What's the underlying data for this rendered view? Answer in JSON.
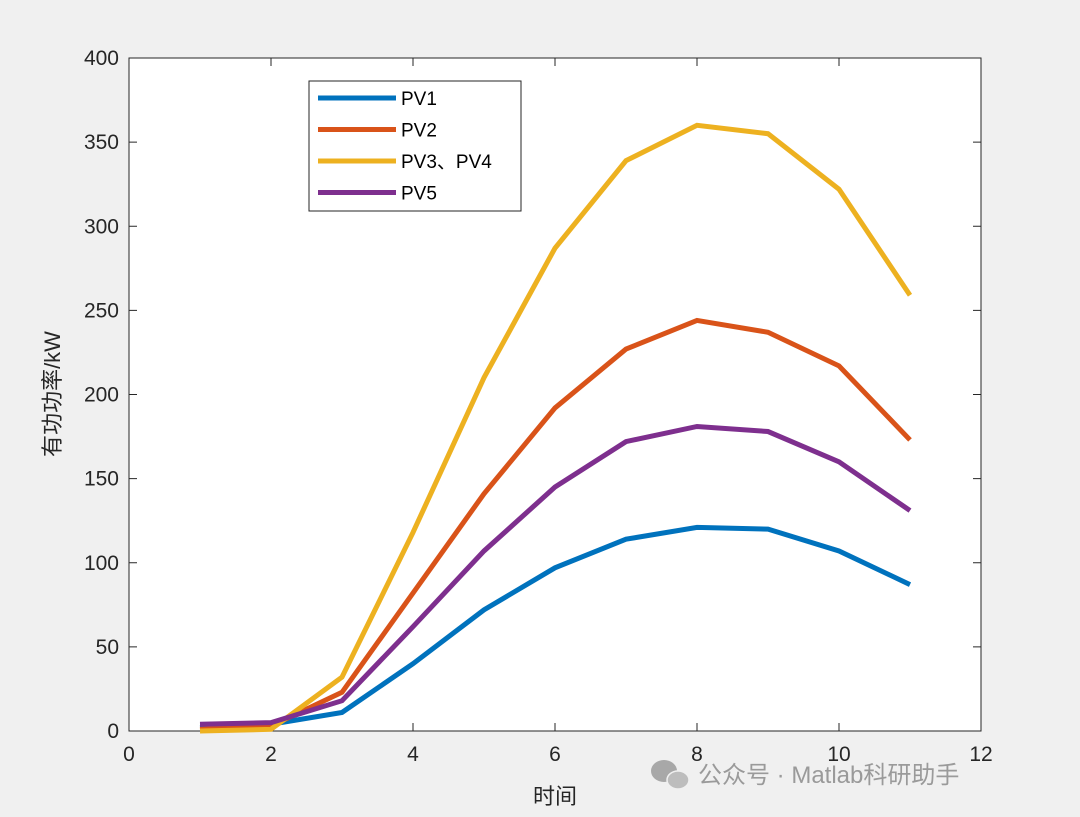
{
  "chart_data": {
    "type": "line",
    "title": "",
    "xlabel": "时间",
    "ylabel": "有功功率/kW",
    "xlim": [
      0,
      12
    ],
    "ylim": [
      0,
      400
    ],
    "xticks": [
      0,
      2,
      4,
      6,
      8,
      10,
      12
    ],
    "yticks": [
      0,
      50,
      100,
      150,
      200,
      250,
      300,
      350,
      400
    ],
    "grid": false,
    "legend_position": "top-left",
    "x": [
      1,
      2,
      3,
      4,
      5,
      6,
      7,
      8,
      9,
      10,
      11
    ],
    "series": [
      {
        "name": "PV1",
        "color": "#0072BD",
        "values": [
          2,
          4,
          11,
          40,
          72,
          97,
          114,
          121,
          120,
          107,
          87
        ]
      },
      {
        "name": "PV2",
        "color": "#D95319",
        "values": [
          1,
          3,
          23,
          82,
          141,
          192,
          227,
          244,
          237,
          217,
          173
        ]
      },
      {
        "name": "PV3、PV4",
        "color": "#EDB120",
        "values": [
          0,
          1,
          32,
          118,
          210,
          287,
          339,
          360,
          355,
          322,
          259
        ]
      },
      {
        "name": "PV5",
        "color": "#7E2F8E",
        "values": [
          4,
          5,
          18,
          62,
          107,
          145,
          172,
          181,
          178,
          160,
          131
        ]
      }
    ]
  },
  "watermark": {
    "text": "公众号 · Matlab科研助手",
    "icon": "wechat-icon"
  }
}
